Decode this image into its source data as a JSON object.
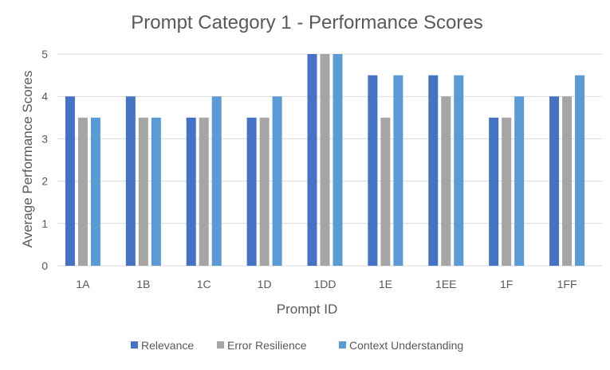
{
  "chart_data": {
    "type": "bar",
    "title": "Prompt Category 1 - Performance Scores",
    "xlabel": "Prompt ID",
    "ylabel": "Average Performance Scores",
    "categories": [
      "1A",
      "1B",
      "1C",
      "1D",
      "1DD",
      "1E",
      "1EE",
      "1F",
      "1FF"
    ],
    "ylim": [
      0,
      5
    ],
    "yticks": [
      0,
      1,
      2,
      3,
      4,
      5
    ],
    "grid": true,
    "legend_position": "bottom",
    "series": [
      {
        "name": "Relevance",
        "color": "#4472C4",
        "values": [
          4,
          4,
          3.5,
          3.5,
          5,
          4.5,
          4.5,
          3.5,
          4
        ]
      },
      {
        "name": "Error Resilience",
        "color": "#A5A5A5",
        "values": [
          3.5,
          3.5,
          3.5,
          3.5,
          5,
          3.5,
          4,
          3.5,
          4
        ]
      },
      {
        "name": "Context Understanding",
        "color": "#5B9BD5",
        "values": [
          3.5,
          3.5,
          4,
          4,
          5,
          4.5,
          4.5,
          4,
          4.5
        ]
      }
    ]
  }
}
